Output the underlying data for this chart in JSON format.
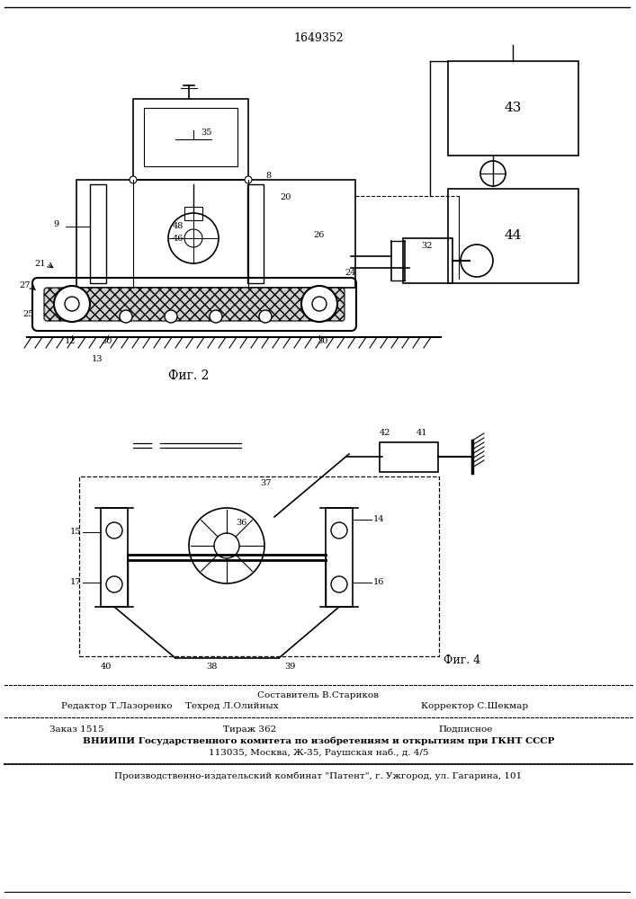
{
  "patent_number": "1649352",
  "fig2_label": "Фиг. 2",
  "fig4_label": "Фиг. 4",
  "footer_line1_col1": "Редактор Т.Лазоренко",
  "footer_line0_col2": "Составитель В.Стариков",
  "footer_line1_col2": "Техред Л.Олийных",
  "footer_line1_col3": "Корректор С.Шекмар",
  "footer_order": "Заказ 1515",
  "footer_tirazh": "Тираж 362",
  "footer_podpis": "Подписное",
  "footer_vniipи": "ВНИИПИ Государственного комитета по изобретениям и открытиям при ГКНТ СССР",
  "footer_address": "113035, Москва, Ж-35, Раушская наб., д. 4/5",
  "footer_kombinat": "Производственно-издательский комбинат \"Патент\", г. Ужгород, ул. Гагарина, 101",
  "bg_color": "#ffffff",
  "line_color": "#000000",
  "text_color": "#000000"
}
